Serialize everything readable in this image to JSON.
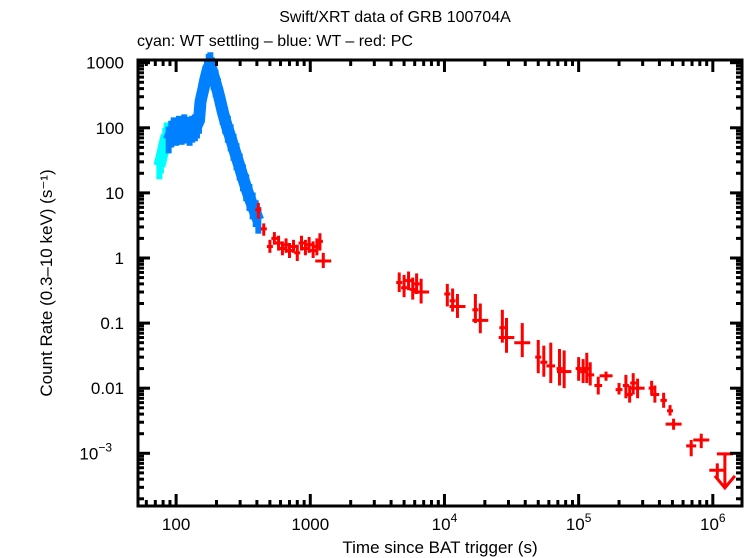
{
  "chart_data": {
    "type": "scatter",
    "title": "Swift/XRT data of GRB 100704A",
    "subtitle": "cyan: WT settling – blue: WT – red: PC",
    "xlabel": "Time since BAT trigger (s)",
    "ylabel": "Count Rate (0.3–10 keV) (s⁻¹)",
    "xscale": "log",
    "yscale": "log",
    "xlim": [
      52,
      1650000
    ],
    "ylim": [
      0.000155,
      1100
    ],
    "grid": false,
    "legend": "none (series described in subtitle)",
    "x_ticks": [
      {
        "value": 100,
        "label": "100"
      },
      {
        "value": 1000,
        "label": "1000"
      },
      {
        "value": 10000,
        "label": "10",
        "exp": "4"
      },
      {
        "value": 100000,
        "label": "10",
        "exp": "5"
      },
      {
        "value": 1000000,
        "label": "10",
        "exp": "6"
      }
    ],
    "y_ticks": [
      {
        "value": 1000,
        "label": "1000"
      },
      {
        "value": 100,
        "label": "100"
      },
      {
        "value": 10,
        "label": "10"
      },
      {
        "value": 1,
        "label": "1"
      },
      {
        "value": 0.1,
        "label": "0.1"
      },
      {
        "value": 0.01,
        "label": "0.01"
      },
      {
        "value": 0.001,
        "label": "10",
        "exp": "−3"
      }
    ],
    "series": [
      {
        "name": "WT settling",
        "color": "#00ffff",
        "points": [
          {
            "t": 75,
            "rate": 26
          },
          {
            "t": 77,
            "rate": 32
          },
          {
            "t": 79,
            "rate": 40
          },
          {
            "t": 81,
            "rate": 50
          },
          {
            "t": 83,
            "rate": 62
          },
          {
            "t": 85,
            "rate": 75
          }
        ]
      },
      {
        "name": "WT",
        "color": "#0080ff",
        "points": [
          {
            "t": 88,
            "rate": 65
          },
          {
            "t": 92,
            "rate": 80
          },
          {
            "t": 96,
            "rate": 90
          },
          {
            "t": 100,
            "rate": 85
          },
          {
            "t": 105,
            "rate": 95
          },
          {
            "t": 110,
            "rate": 88
          },
          {
            "t": 115,
            "rate": 100
          },
          {
            "t": 120,
            "rate": 92
          },
          {
            "t": 126,
            "rate": 85
          },
          {
            "t": 132,
            "rate": 95
          },
          {
            "t": 138,
            "rate": 100
          },
          {
            "t": 143,
            "rate": 110
          },
          {
            "t": 148,
            "rate": 130
          },
          {
            "t": 152,
            "rate": 250
          },
          {
            "t": 156,
            "rate": 320
          },
          {
            "t": 160,
            "rate": 400
          },
          {
            "t": 165,
            "rate": 550
          },
          {
            "t": 170,
            "rate": 700
          },
          {
            "t": 175,
            "rate": 850
          },
          {
            "t": 180,
            "rate": 900
          },
          {
            "t": 185,
            "rate": 750
          },
          {
            "t": 190,
            "rate": 620
          },
          {
            "t": 197,
            "rate": 480
          },
          {
            "t": 205,
            "rate": 360
          },
          {
            "t": 213,
            "rate": 260
          },
          {
            "t": 222,
            "rate": 180
          },
          {
            "t": 232,
            "rate": 130
          },
          {
            "t": 243,
            "rate": 95
          },
          {
            "t": 255,
            "rate": 70
          },
          {
            "t": 268,
            "rate": 50
          },
          {
            "t": 282,
            "rate": 36
          },
          {
            "t": 298,
            "rate": 25
          },
          {
            "t": 315,
            "rate": 17
          },
          {
            "t": 333,
            "rate": 12
          },
          {
            "t": 352,
            "rate": 8.5
          },
          {
            "t": 372,
            "rate": 6.3
          },
          {
            "t": 392,
            "rate": 4.8
          },
          {
            "t": 410,
            "rate": 3.8
          }
        ]
      },
      {
        "name": "PC",
        "color": "#ff0000",
        "points": [
          {
            "t": 410,
            "rate": 5.5,
            "lo": 4.0,
            "hi": 7.0
          },
          {
            "t": 450,
            "rate": 2.8,
            "lo": 2.2,
            "hi": 3.4
          },
          {
            "t": 500,
            "rate": 1.5,
            "lo": 1.2,
            "hi": 1.9
          },
          {
            "t": 540,
            "rate": 2.0,
            "lo": 1.6,
            "hi": 2.5
          },
          {
            "t": 580,
            "rate": 1.7,
            "lo": 1.3,
            "hi": 2.2
          },
          {
            "t": 620,
            "rate": 1.4,
            "lo": 1.1,
            "hi": 1.8
          },
          {
            "t": 660,
            "rate": 1.6,
            "lo": 1.2,
            "hi": 2.0
          },
          {
            "t": 700,
            "rate": 1.3,
            "lo": 1.0,
            "hi": 1.7
          },
          {
            "t": 750,
            "rate": 1.5,
            "lo": 1.2,
            "hi": 1.9
          },
          {
            "t": 800,
            "rate": 1.2,
            "lo": 0.9,
            "hi": 1.6
          },
          {
            "t": 860,
            "rate": 1.7,
            "lo": 1.3,
            "hi": 2.2
          },
          {
            "t": 920,
            "rate": 1.4,
            "lo": 1.1,
            "hi": 1.9
          },
          {
            "t": 980,
            "rate": 1.6,
            "lo": 1.2,
            "hi": 2.1
          },
          {
            "t": 1050,
            "rate": 1.3,
            "lo": 1.0,
            "hi": 1.8
          },
          {
            "t": 1120,
            "rate": 1.5,
            "lo": 1.1,
            "hi": 2.0
          },
          {
            "t": 1180,
            "rate": 1.8,
            "lo": 1.3,
            "hi": 2.4
          },
          {
            "t": 1250,
            "rate": 0.9,
            "lo": 0.7,
            "hi": 1.2
          },
          {
            "t": 4600,
            "rate": 0.42,
            "lo": 0.3,
            "hi": 0.6
          },
          {
            "t": 5000,
            "rate": 0.35,
            "lo": 0.25,
            "hi": 0.55
          },
          {
            "t": 5400,
            "rate": 0.45,
            "lo": 0.32,
            "hi": 0.62
          },
          {
            "t": 5800,
            "rate": 0.33,
            "lo": 0.23,
            "hi": 0.5
          },
          {
            "t": 6200,
            "rate": 0.4,
            "lo": 0.28,
            "hi": 0.58
          },
          {
            "t": 6700,
            "rate": 0.3,
            "lo": 0.2,
            "hi": 0.48
          },
          {
            "t": 10500,
            "rate": 0.28,
            "lo": 0.18,
            "hi": 0.4
          },
          {
            "t": 11500,
            "rate": 0.22,
            "lo": 0.15,
            "hi": 0.34
          },
          {
            "t": 12500,
            "rate": 0.18,
            "lo": 0.12,
            "hi": 0.28
          },
          {
            "t": 17000,
            "rate": 0.16,
            "lo": 0.1,
            "hi": 0.28
          },
          {
            "t": 18500,
            "rate": 0.11,
            "lo": 0.07,
            "hi": 0.2
          },
          {
            "t": 27000,
            "rate": 0.085,
            "lo": 0.05,
            "hi": 0.16
          },
          {
            "t": 29000,
            "rate": 0.06,
            "lo": 0.035,
            "hi": 0.12
          },
          {
            "t": 38000,
            "rate": 0.05,
            "lo": 0.03,
            "hi": 0.1
          },
          {
            "t": 50000,
            "rate": 0.03,
            "lo": 0.017,
            "hi": 0.055
          },
          {
            "t": 55000,
            "rate": 0.025,
            "lo": 0.015,
            "hi": 0.045
          },
          {
            "t": 62000,
            "rate": 0.022,
            "lo": 0.012,
            "hi": 0.05
          },
          {
            "t": 72000,
            "rate": 0.02,
            "lo": 0.011,
            "hi": 0.04
          },
          {
            "t": 78000,
            "rate": 0.018,
            "lo": 0.01,
            "hi": 0.038
          },
          {
            "t": 100000,
            "rate": 0.02,
            "lo": 0.013,
            "hi": 0.03
          },
          {
            "t": 108000,
            "rate": 0.018,
            "lo": 0.012,
            "hi": 0.028
          },
          {
            "t": 115000,
            "rate": 0.02,
            "lo": 0.012,
            "hi": 0.035
          },
          {
            "t": 122000,
            "rate": 0.016,
            "lo": 0.011,
            "hi": 0.025
          },
          {
            "t": 140000,
            "rate": 0.011,
            "lo": 0.008,
            "hi": 0.015
          },
          {
            "t": 160000,
            "rate": 0.0155,
            "lo": 0.013,
            "hi": 0.018
          },
          {
            "t": 200000,
            "rate": 0.0095,
            "lo": 0.008,
            "hi": 0.012
          },
          {
            "t": 225000,
            "rate": 0.011,
            "lo": 0.007,
            "hi": 0.016
          },
          {
            "t": 240000,
            "rate": 0.008,
            "lo": 0.006,
            "hi": 0.011
          },
          {
            "t": 255000,
            "rate": 0.012,
            "lo": 0.008,
            "hi": 0.017
          },
          {
            "t": 275000,
            "rate": 0.01,
            "lo": 0.007,
            "hi": 0.014
          },
          {
            "t": 350000,
            "rate": 0.01,
            "lo": 0.008,
            "hi": 0.013
          },
          {
            "t": 370000,
            "rate": 0.008,
            "lo": 0.006,
            "hi": 0.011
          },
          {
            "t": 430000,
            "rate": 0.0065,
            "lo": 0.005,
            "hi": 0.0085
          },
          {
            "t": 480000,
            "rate": 0.0045,
            "lo": 0.0038,
            "hi": 0.0055
          },
          {
            "t": 510000,
            "rate": 0.0028,
            "lo": 0.0023,
            "hi": 0.0034
          },
          {
            "t": 690000,
            "rate": 0.0013,
            "lo": 0.0009,
            "hi": 0.0016
          },
          {
            "t": 820000,
            "rate": 0.0016,
            "lo": 0.0012,
            "hi": 0.002
          },
          {
            "t": 1080000,
            "rate": 0.00055,
            "lo": 0.0004,
            "hi": 0.0007
          }
        ],
        "upper_limits": [
          {
            "t": 1230000,
            "rate": 0.00098
          }
        ]
      }
    ]
  }
}
